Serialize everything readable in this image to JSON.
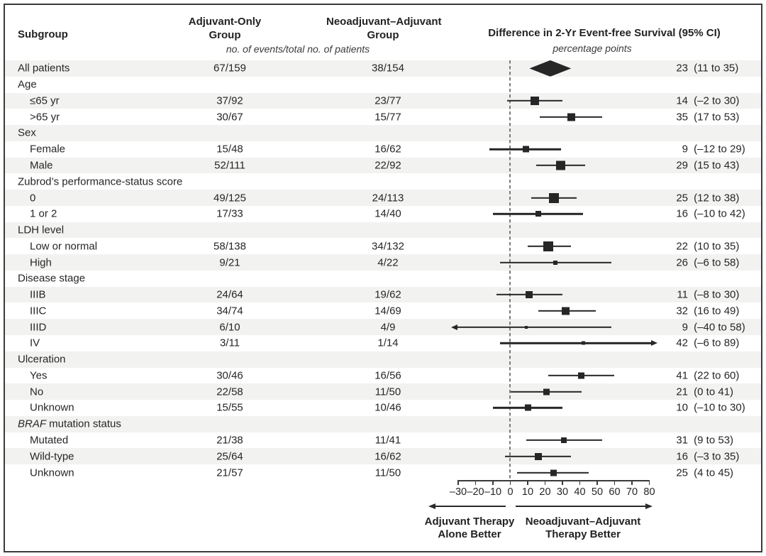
{
  "chart_data": {
    "type": "scatter",
    "variant": "forest-plot",
    "title": "Difference in 2-Yr Event-free Survival (95% CI)",
    "unit_note": "percentage points",
    "columns": {
      "subgroup": "Subgroup",
      "adjuvant_line1": "Adjuvant-Only",
      "adjuvant_line2": "Group",
      "neoadjuvant_line1": "Neoadjuvant–Adjuvant",
      "neoadjuvant_line2": "Group",
      "events_note": "no. of events/total no. of patients"
    },
    "x_axis": {
      "min": -30,
      "max": 80,
      "tick_values": [
        -30,
        -20,
        -10,
        0,
        10,
        20,
        30,
        40,
        50,
        60,
        70,
        80
      ],
      "tick_labels": [
        "–30",
        "–20",
        "–10",
        "0",
        "10",
        "20",
        "30",
        "40",
        "50",
        "60",
        "70",
        "80"
      ],
      "reference_line": 0
    },
    "rows": [
      {
        "kind": "overall",
        "label": "All patients",
        "adjuvant": "67/159",
        "neoadjuvant": "38/154",
        "estimate": 23,
        "ci_lower": 11,
        "ci_upper": 35,
        "estimate_text": "23",
        "ci_text": "(11 to 35)"
      },
      {
        "kind": "category",
        "label": "Age"
      },
      {
        "kind": "subgroup",
        "label": "≤65 yr",
        "adjuvant": "37/92",
        "neoadjuvant": "23/77",
        "estimate": 14,
        "ci_lower": -2,
        "ci_upper": 30,
        "estimate_text": "14",
        "ci_text": "(–2 to 30)"
      },
      {
        "kind": "subgroup",
        "label": ">65 yr",
        "adjuvant": "30/67",
        "neoadjuvant": "15/77",
        "estimate": 35,
        "ci_lower": 17,
        "ci_upper": 53,
        "estimate_text": "35",
        "ci_text": "(17 to 53)"
      },
      {
        "kind": "category",
        "label": "Sex"
      },
      {
        "kind": "subgroup",
        "label": "Female",
        "adjuvant": "15/48",
        "neoadjuvant": "16/62",
        "estimate": 9,
        "ci_lower": -12,
        "ci_upper": 29,
        "estimate_text": "9",
        "ci_text": "(–12 to 29)"
      },
      {
        "kind": "subgroup",
        "label": "Male",
        "adjuvant": "52/111",
        "neoadjuvant": "22/92",
        "estimate": 29,
        "ci_lower": 15,
        "ci_upper": 43,
        "estimate_text": "29",
        "ci_text": "(15 to 43)"
      },
      {
        "kind": "category",
        "label": "Zubrod’s performance-status score"
      },
      {
        "kind": "subgroup",
        "label": "0",
        "adjuvant": "49/125",
        "neoadjuvant": "24/113",
        "estimate": 25,
        "ci_lower": 12,
        "ci_upper": 38,
        "estimate_text": "25",
        "ci_text": "(12 to 38)"
      },
      {
        "kind": "subgroup",
        "label": "1 or 2",
        "adjuvant": "17/33",
        "neoadjuvant": "14/40",
        "estimate": 16,
        "ci_lower": -10,
        "ci_upper": 42,
        "estimate_text": "16",
        "ci_text": "(–10 to 42)"
      },
      {
        "kind": "category",
        "label": "LDH level"
      },
      {
        "kind": "subgroup",
        "label": "Low or normal",
        "adjuvant": "58/138",
        "neoadjuvant": "34/132",
        "estimate": 22,
        "ci_lower": 10,
        "ci_upper": 35,
        "estimate_text": "22",
        "ci_text": "(10 to 35)"
      },
      {
        "kind": "subgroup",
        "label": "High",
        "adjuvant": "9/21",
        "neoadjuvant": "4/22",
        "estimate": 26,
        "ci_lower": -6,
        "ci_upper": 58,
        "estimate_text": "26",
        "ci_text": "(–6 to 58)"
      },
      {
        "kind": "category",
        "label": "Disease stage"
      },
      {
        "kind": "subgroup",
        "label": "IIIB",
        "adjuvant": "24/64",
        "neoadjuvant": "19/62",
        "estimate": 11,
        "ci_lower": -8,
        "ci_upper": 30,
        "estimate_text": "11",
        "ci_text": "(–8 to 30)"
      },
      {
        "kind": "subgroup",
        "label": "IIIC",
        "adjuvant": "34/74",
        "neoadjuvant": "14/69",
        "estimate": 32,
        "ci_lower": 16,
        "ci_upper": 49,
        "estimate_text": "32",
        "ci_text": "(16 to 49)"
      },
      {
        "kind": "subgroup",
        "label": "IIID",
        "adjuvant": "6/10",
        "neoadjuvant": "4/9",
        "estimate": 9,
        "ci_lower": -40,
        "ci_upper": 58,
        "estimate_text": "9",
        "ci_text": "(–40 to 58)"
      },
      {
        "kind": "subgroup",
        "label": "IV",
        "adjuvant": "3/11",
        "neoadjuvant": "1/14",
        "estimate": 42,
        "ci_lower": -6,
        "ci_upper": 89,
        "estimate_text": "42",
        "ci_text": "(–6 to 89)"
      },
      {
        "kind": "category",
        "label": "Ulceration"
      },
      {
        "kind": "subgroup",
        "label": "Yes",
        "adjuvant": "30/46",
        "neoadjuvant": "16/56",
        "estimate": 41,
        "ci_lower": 22,
        "ci_upper": 60,
        "estimate_text": "41",
        "ci_text": "(22 to 60)"
      },
      {
        "kind": "subgroup",
        "label": "No",
        "adjuvant": "22/58",
        "neoadjuvant": "11/50",
        "estimate": 21,
        "ci_lower": 0,
        "ci_upper": 41,
        "estimate_text": "21",
        "ci_text": "(0 to 41)"
      },
      {
        "kind": "subgroup",
        "label": "Unknown",
        "adjuvant": "15/55",
        "neoadjuvant": "10/46",
        "estimate": 10,
        "ci_lower": -10,
        "ci_upper": 30,
        "estimate_text": "10",
        "ci_text": "(–10 to 30)"
      },
      {
        "kind": "category",
        "label": "BRAF mutation status",
        "label_italic": "BRAF",
        "label_rest": " mutation status"
      },
      {
        "kind": "subgroup",
        "label": "Mutated",
        "adjuvant": "21/38",
        "neoadjuvant": "11/41",
        "estimate": 31,
        "ci_lower": 9,
        "ci_upper": 53,
        "estimate_text": "31",
        "ci_text": "(9 to 53)"
      },
      {
        "kind": "subgroup",
        "label": "Wild-type",
        "adjuvant": "25/64",
        "neoadjuvant": "16/62",
        "estimate": 16,
        "ci_lower": -3,
        "ci_upper": 35,
        "estimate_text": "16",
        "ci_text": "(–3 to 35)"
      },
      {
        "kind": "subgroup",
        "label": "Unknown",
        "adjuvant": "21/57",
        "neoadjuvant": "11/50",
        "estimate": 25,
        "ci_lower": 4,
        "ci_upper": 45,
        "estimate_text": "25",
        "ci_text": "(4 to 45)"
      }
    ],
    "footer": {
      "left_line1": "Adjuvant Therapy",
      "left_line2": "Alone Better",
      "right_line1": "Neoadjuvant–Adjuvant",
      "right_line2": "Therapy Better"
    },
    "colors": {
      "text": "#262626",
      "marker": "#262626",
      "stripe": "#f2f2f1",
      "reference_line": "#7b7b7b",
      "frame_border": "#3b3b3b"
    }
  }
}
